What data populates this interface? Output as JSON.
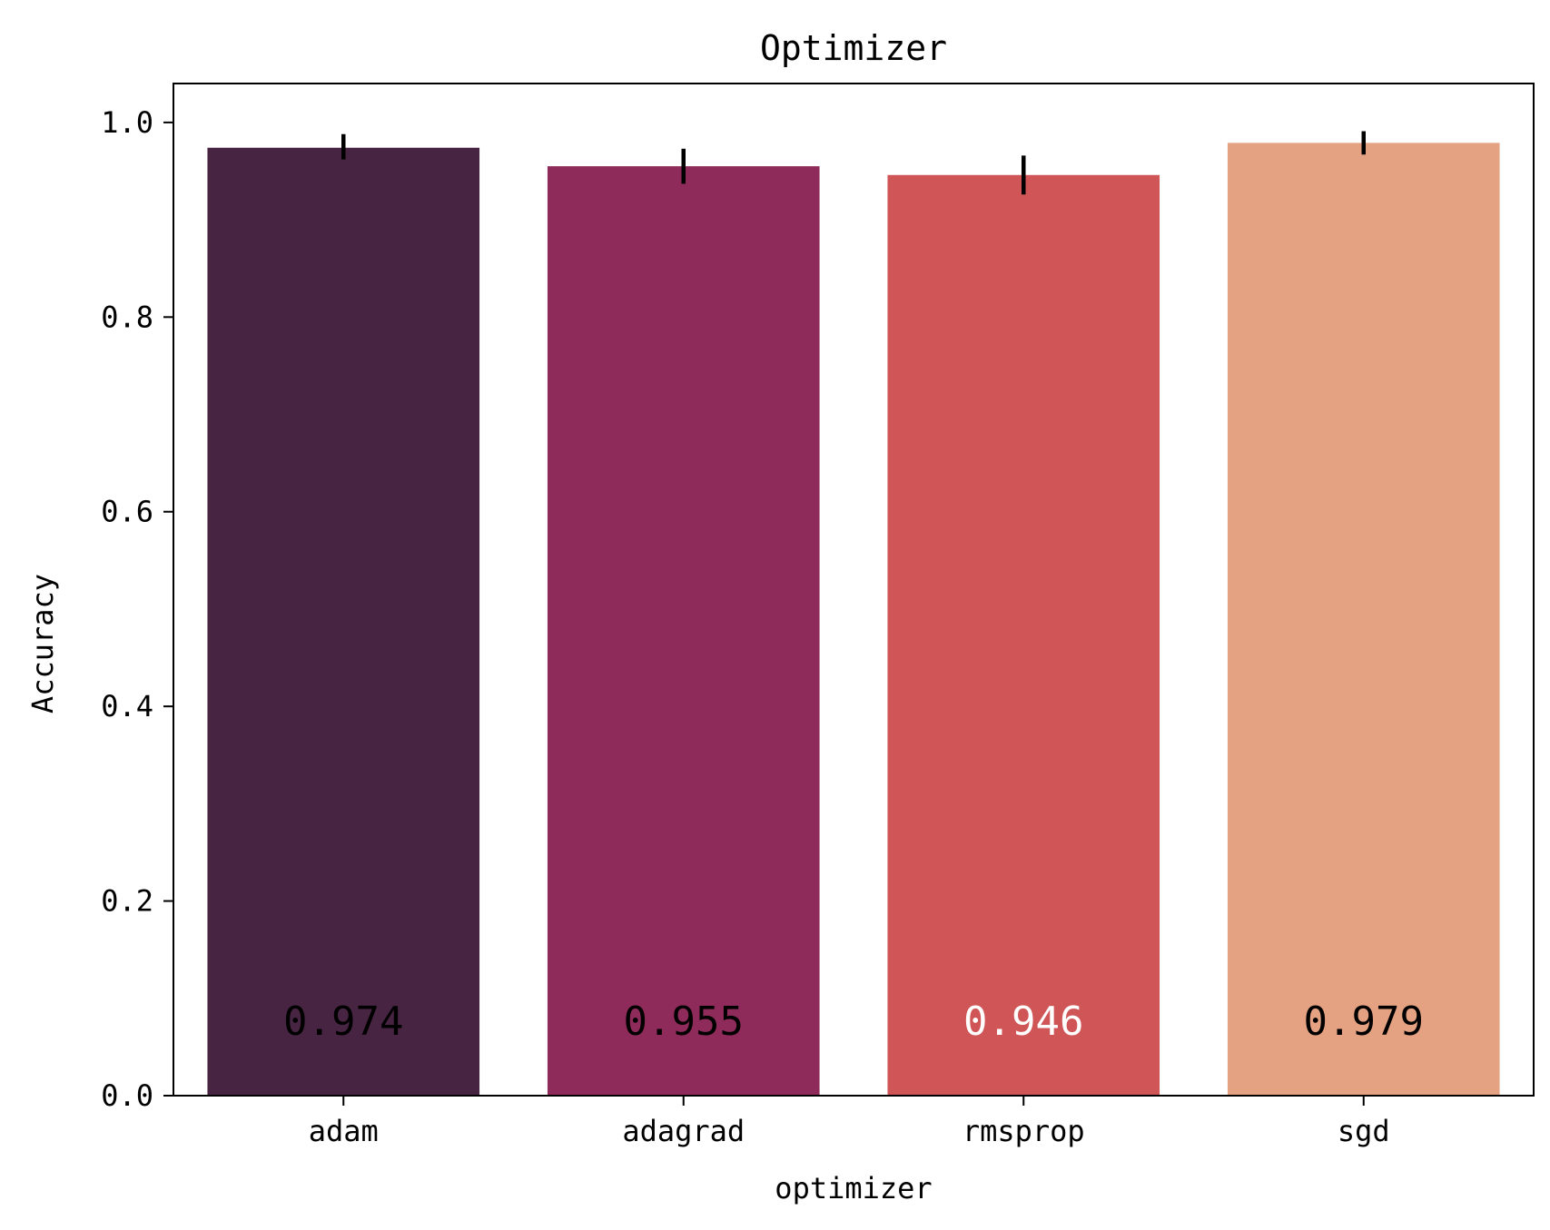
{
  "chart_data": {
    "type": "bar",
    "title": "Optimizer",
    "xlabel": "optimizer",
    "ylabel": "Accuracy",
    "categories": [
      "adam",
      "adagrad",
      "rmsprop",
      "sgd"
    ],
    "values": [
      0.974,
      0.955,
      0.946,
      0.979
    ],
    "value_labels": [
      "0.974",
      "0.955",
      "0.946",
      "0.979"
    ],
    "error_low": [
      0.962,
      0.937,
      0.926,
      0.967
    ],
    "error_high": [
      0.988,
      0.973,
      0.966,
      0.991
    ],
    "ylim": [
      0,
      1.04
    ],
    "yticks": [
      0.0,
      0.2,
      0.4,
      0.6,
      0.8,
      1.0
    ],
    "ytick_labels": [
      "0.0",
      "0.2",
      "0.4",
      "0.6",
      "0.8",
      "1.0"
    ],
    "bar_colors": [
      "#472442",
      "#8e2b5a",
      "#d05557",
      "#e4a282"
    ],
    "label_colors": [
      "#000000",
      "#000000",
      "#ffffff",
      "#000000"
    ],
    "error_bar_color": "#000000",
    "grid": false,
    "legend": "none"
  }
}
